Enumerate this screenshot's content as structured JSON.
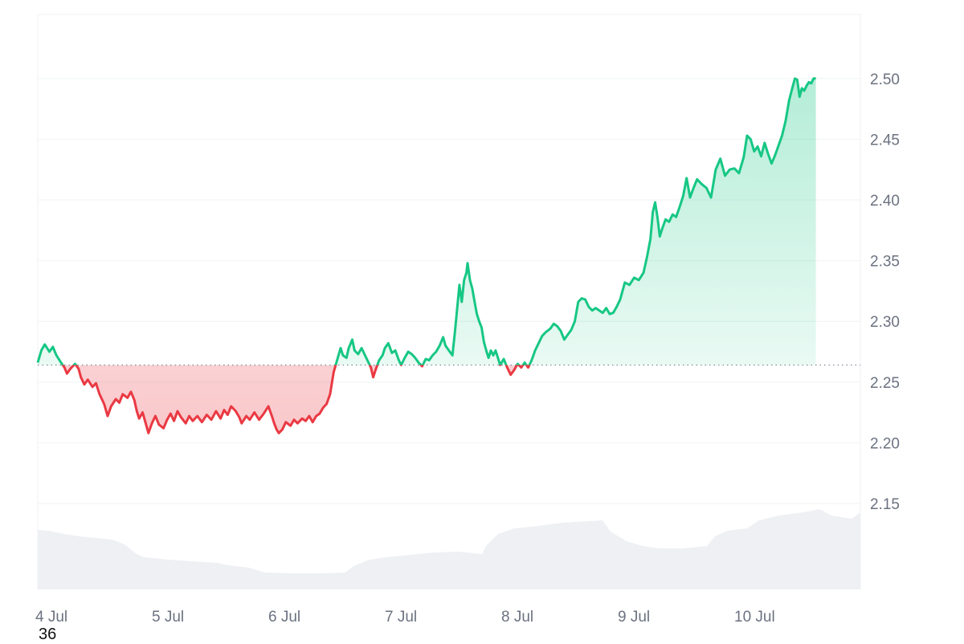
{
  "corner_label": "36",
  "chart_data": {
    "type": "line",
    "title": "",
    "xlabel": "",
    "ylabel": "",
    "ylim": [
      2.098,
      2.552
    ],
    "xlim": [
      0,
      7.07
    ],
    "baseline": 2.264,
    "yticks": [
      2.15,
      2.2,
      2.25,
      2.3,
      2.35,
      2.4,
      2.45,
      2.5
    ],
    "ytick_labels": [
      "2.15",
      "2.20",
      "2.25",
      "2.30",
      "2.35",
      "2.40",
      "2.45",
      "2.50"
    ],
    "xticks": [
      0,
      1,
      2,
      3,
      4,
      5,
      6
    ],
    "xtick_labels": [
      "4 Jul",
      "5 Jul",
      "6 Jul",
      "7 Jul",
      "8 Jul",
      "9 Jul",
      "10 Jul"
    ],
    "grid": true,
    "legend": "none",
    "colors": {
      "up": "#16c784",
      "down": "#ea3943",
      "volume": "#eef0f3",
      "grid": "#eff2f5",
      "baseline": "#808a9d"
    },
    "series": [
      {
        "values": [
          [
            0.0,
            2.266
          ],
          [
            0.03,
            2.276
          ],
          [
            0.06,
            2.281
          ],
          [
            0.1,
            2.275
          ],
          [
            0.13,
            2.279
          ],
          [
            0.16,
            2.272
          ],
          [
            0.2,
            2.266
          ],
          [
            0.23,
            2.262
          ],
          [
            0.25,
            2.257
          ],
          [
            0.28,
            2.261
          ],
          [
            0.32,
            2.265
          ],
          [
            0.35,
            2.261
          ],
          [
            0.37,
            2.254
          ],
          [
            0.4,
            2.248
          ],
          [
            0.43,
            2.252
          ],
          [
            0.47,
            2.246
          ],
          [
            0.5,
            2.249
          ],
          [
            0.53,
            2.24
          ],
          [
            0.57,
            2.232
          ],
          [
            0.6,
            2.222
          ],
          [
            0.63,
            2.23
          ],
          [
            0.67,
            2.236
          ],
          [
            0.7,
            2.233
          ],
          [
            0.73,
            2.24
          ],
          [
            0.77,
            2.237
          ],
          [
            0.8,
            2.242
          ],
          [
            0.83,
            2.235
          ],
          [
            0.85,
            2.226
          ],
          [
            0.87,
            2.22
          ],
          [
            0.9,
            2.225
          ],
          [
            0.93,
            2.215
          ],
          [
            0.95,
            2.208
          ],
          [
            0.98,
            2.216
          ],
          [
            1.01,
            2.222
          ],
          [
            1.04,
            2.215
          ],
          [
            1.08,
            2.212
          ],
          [
            1.11,
            2.219
          ],
          [
            1.14,
            2.224
          ],
          [
            1.17,
            2.218
          ],
          [
            1.2,
            2.226
          ],
          [
            1.23,
            2.221
          ],
          [
            1.27,
            2.216
          ],
          [
            1.3,
            2.222
          ],
          [
            1.33,
            2.218
          ],
          [
            1.37,
            2.222
          ],
          [
            1.41,
            2.217
          ],
          [
            1.45,
            2.223
          ],
          [
            1.49,
            2.219
          ],
          [
            1.53,
            2.226
          ],
          [
            1.57,
            2.22
          ],
          [
            1.6,
            2.227
          ],
          [
            1.63,
            2.223
          ],
          [
            1.66,
            2.23
          ],
          [
            1.7,
            2.226
          ],
          [
            1.73,
            2.221
          ],
          [
            1.75,
            2.216
          ],
          [
            1.79,
            2.222
          ],
          [
            1.82,
            2.219
          ],
          [
            1.86,
            2.225
          ],
          [
            1.9,
            2.219
          ],
          [
            1.94,
            2.224
          ],
          [
            1.98,
            2.23
          ],
          [
            2.01,
            2.222
          ],
          [
            2.03,
            2.216
          ],
          [
            2.05,
            2.211
          ],
          [
            2.07,
            2.208
          ],
          [
            2.1,
            2.211
          ],
          [
            2.13,
            2.217
          ],
          [
            2.17,
            2.214
          ],
          [
            2.2,
            2.219
          ],
          [
            2.23,
            2.216
          ],
          [
            2.27,
            2.22
          ],
          [
            2.3,
            2.218
          ],
          [
            2.33,
            2.222
          ],
          [
            2.36,
            2.217
          ],
          [
            2.39,
            2.222
          ],
          [
            2.42,
            2.224
          ],
          [
            2.45,
            2.229
          ],
          [
            2.48,
            2.232
          ],
          [
            2.51,
            2.24
          ],
          [
            2.54,
            2.258
          ],
          [
            2.57,
            2.268
          ],
          [
            2.6,
            2.278
          ],
          [
            2.62,
            2.272
          ],
          [
            2.65,
            2.27
          ],
          [
            2.67,
            2.278
          ],
          [
            2.7,
            2.285
          ],
          [
            2.72,
            2.276
          ],
          [
            2.75,
            2.273
          ],
          [
            2.78,
            2.278
          ],
          [
            2.81,
            2.272
          ],
          [
            2.84,
            2.266
          ],
          [
            2.86,
            2.262
          ],
          [
            2.88,
            2.254
          ],
          [
            2.9,
            2.26
          ],
          [
            2.93,
            2.268
          ],
          [
            2.96,
            2.272
          ],
          [
            2.98,
            2.278
          ],
          [
            3.01,
            2.282
          ],
          [
            3.04,
            2.274
          ],
          [
            3.07,
            2.276
          ],
          [
            3.1,
            2.268
          ],
          [
            3.12,
            2.264
          ],
          [
            3.15,
            2.27
          ],
          [
            3.18,
            2.275
          ],
          [
            3.21,
            2.273
          ],
          [
            3.24,
            2.27
          ],
          [
            3.27,
            2.266
          ],
          [
            3.3,
            2.263
          ],
          [
            3.33,
            2.269
          ],
          [
            3.36,
            2.268
          ],
          [
            3.39,
            2.272
          ],
          [
            3.42,
            2.275
          ],
          [
            3.45,
            2.28
          ],
          [
            3.48,
            2.287
          ],
          [
            3.5,
            2.28
          ],
          [
            3.53,
            2.276
          ],
          [
            3.56,
            2.272
          ],
          [
            3.58,
            2.29
          ],
          [
            3.6,
            2.31
          ],
          [
            3.62,
            2.33
          ],
          [
            3.64,
            2.316
          ],
          [
            3.66,
            2.334
          ],
          [
            3.68,
            2.34
          ],
          [
            3.69,
            2.348
          ],
          [
            3.71,
            2.334
          ],
          [
            3.73,
            2.327
          ],
          [
            3.75,
            2.316
          ],
          [
            3.77,
            2.306
          ],
          [
            3.79,
            2.3
          ],
          [
            3.81,
            2.295
          ],
          [
            3.83,
            2.283
          ],
          [
            3.85,
            2.276
          ],
          [
            3.87,
            2.27
          ],
          [
            3.89,
            2.276
          ],
          [
            3.91,
            2.272
          ],
          [
            3.93,
            2.276
          ],
          [
            3.95,
            2.27
          ],
          [
            3.97,
            2.264
          ],
          [
            4.0,
            2.269
          ],
          [
            4.03,
            2.262
          ],
          [
            4.06,
            2.256
          ],
          [
            4.09,
            2.26
          ],
          [
            4.12,
            2.265
          ],
          [
            4.15,
            2.262
          ],
          [
            4.18,
            2.266
          ],
          [
            4.21,
            2.262
          ],
          [
            4.24,
            2.268
          ],
          [
            4.27,
            2.276
          ],
          [
            4.3,
            2.282
          ],
          [
            4.33,
            2.288
          ],
          [
            4.36,
            2.291
          ],
          [
            4.4,
            2.294
          ],
          [
            4.43,
            2.298
          ],
          [
            4.46,
            2.296
          ],
          [
            4.49,
            2.292
          ],
          [
            4.52,
            2.285
          ],
          [
            4.55,
            2.289
          ],
          [
            4.58,
            2.293
          ],
          [
            4.61,
            2.3
          ],
          [
            4.64,
            2.316
          ],
          [
            4.67,
            2.319
          ],
          [
            4.7,
            2.318
          ],
          [
            4.73,
            2.312
          ],
          [
            4.76,
            2.309
          ],
          [
            4.79,
            2.311
          ],
          [
            4.82,
            2.309
          ],
          [
            4.85,
            2.307
          ],
          [
            4.88,
            2.311
          ],
          [
            4.91,
            2.306
          ],
          [
            4.94,
            2.307
          ],
          [
            4.97,
            2.312
          ],
          [
            5.0,
            2.318
          ],
          [
            5.04,
            2.332
          ],
          [
            5.08,
            2.33
          ],
          [
            5.12,
            2.336
          ],
          [
            5.16,
            2.334
          ],
          [
            5.2,
            2.34
          ],
          [
            5.23,
            2.353
          ],
          [
            5.26,
            2.368
          ],
          [
            5.28,
            2.39
          ],
          [
            5.3,
            2.398
          ],
          [
            5.32,
            2.386
          ],
          [
            5.34,
            2.37
          ],
          [
            5.36,
            2.376
          ],
          [
            5.39,
            2.384
          ],
          [
            5.42,
            2.382
          ],
          [
            5.45,
            2.388
          ],
          [
            5.48,
            2.386
          ],
          [
            5.51,
            2.394
          ],
          [
            5.54,
            2.403
          ],
          [
            5.57,
            2.418
          ],
          [
            5.6,
            2.402
          ],
          [
            5.63,
            2.41
          ],
          [
            5.66,
            2.417
          ],
          [
            5.7,
            2.413
          ],
          [
            5.74,
            2.41
          ],
          [
            5.78,
            2.402
          ],
          [
            5.82,
            2.425
          ],
          [
            5.86,
            2.434
          ],
          [
            5.9,
            2.42
          ],
          [
            5.94,
            2.425
          ],
          [
            5.98,
            2.426
          ],
          [
            6.02,
            2.422
          ],
          [
            6.06,
            2.435
          ],
          [
            6.09,
            2.453
          ],
          [
            6.12,
            2.45
          ],
          [
            6.15,
            2.44
          ],
          [
            6.18,
            2.444
          ],
          [
            6.21,
            2.436
          ],
          [
            6.24,
            2.447
          ],
          [
            6.27,
            2.438
          ],
          [
            6.3,
            2.43
          ],
          [
            6.33,
            2.437
          ],
          [
            6.36,
            2.445
          ],
          [
            6.39,
            2.453
          ],
          [
            6.42,
            2.465
          ],
          [
            6.45,
            2.482
          ],
          [
            6.48,
            2.493
          ],
          [
            6.5,
            2.5
          ],
          [
            6.52,
            2.499
          ],
          [
            6.54,
            2.485
          ],
          [
            6.56,
            2.492
          ],
          [
            6.58,
            2.49
          ],
          [
            6.6,
            2.494
          ],
          [
            6.62,
            2.497
          ],
          [
            6.64,
            2.496
          ],
          [
            6.66,
            2.5
          ],
          [
            6.68,
            2.5
          ]
        ]
      }
    ]
  }
}
